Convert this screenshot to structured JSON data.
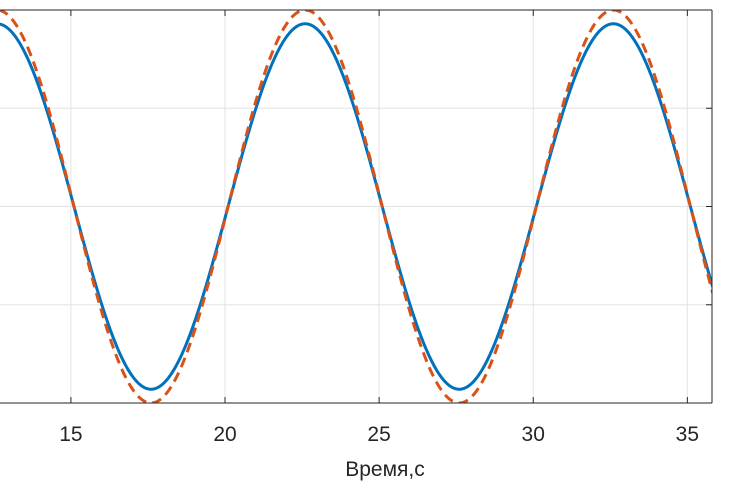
{
  "chart_data": {
    "type": "line",
    "title": "",
    "xlabel": "Время,с",
    "ylabel": "",
    "xlim": [
      12.7,
      35.8
    ],
    "ylim": [
      -1.0,
      1.0
    ],
    "xticks": [
      15,
      20,
      25,
      30,
      35
    ],
    "xtick_labels": [
      "15",
      "20",
      "25",
      "30",
      "35"
    ],
    "yticks": [
      -0.5,
      0,
      0.5
    ],
    "grid": true,
    "period": 10,
    "series": [
      {
        "key": "solid",
        "style": "solid",
        "color": "#0072BD",
        "amplitude": 0.93,
        "peak_x": [
          12.6,
          22.6,
          32.6
        ],
        "trough_x": [
          17.6,
          27.6
        ]
      },
      {
        "key": "dashed",
        "style": "dashed",
        "color": "#D95319",
        "amplitude": 1.0,
        "peak_x": [
          12.6,
          22.6,
          32.6
        ],
        "trough_x": [
          17.6,
          27.6
        ]
      }
    ]
  }
}
